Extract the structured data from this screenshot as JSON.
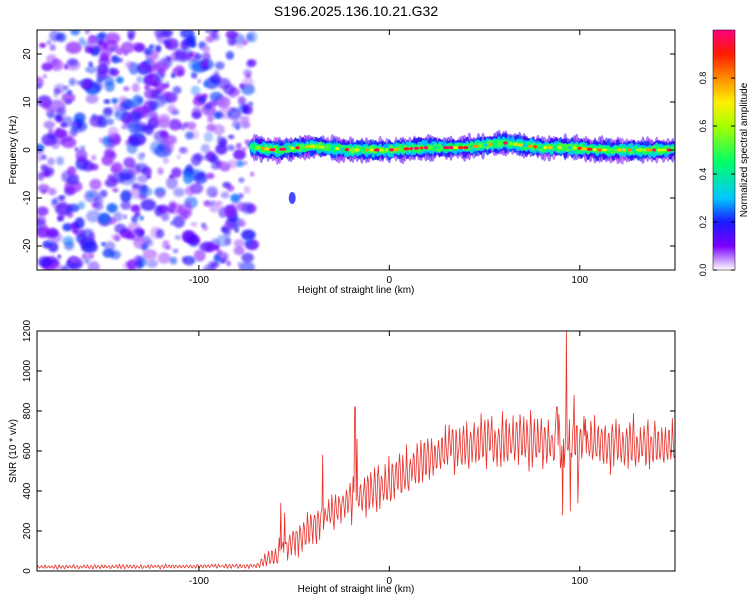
{
  "title": "S196.2025.136.10.21.G32",
  "chart_data": [
    {
      "type": "heatmap",
      "xlabel": "Height of straight line (km)",
      "ylabel": "Frequency (Hz)",
      "xlim": [
        -185,
        150
      ],
      "ylim": [
        -25,
        25
      ],
      "xticks": [
        -100,
        0,
        100
      ],
      "yticks": [
        -20,
        -10,
        0,
        10,
        20
      ],
      "colorbar": {
        "label": "Normalized spectral amplitude",
        "range": [
          0,
          1
        ],
        "ticks": [
          "0.0",
          "0.2",
          "0.4",
          "0.6",
          "0.8"
        ]
      },
      "regions": [
        {
          "name": "noise",
          "x": [
            -185,
            -72
          ],
          "y": [
            -25,
            25
          ],
          "amplitude": [
            0.05,
            0.25
          ]
        },
        {
          "name": "signal",
          "x": [
            -72,
            150
          ],
          "y_center": 0,
          "y_halfwidth": 1.5,
          "amplitude": [
            0.3,
            1.0
          ]
        },
        {
          "name": "blob",
          "x": [
            -52,
            -50
          ],
          "y": [
            -11,
            -9
          ],
          "amplitude": [
            0.1,
            0.2
          ]
        }
      ],
      "signal_trace": [
        {
          "x": -70,
          "y": 0.5
        },
        {
          "x": -60,
          "y": 0.0
        },
        {
          "x": -40,
          "y": 0.8
        },
        {
          "x": -20,
          "y": 0.0
        },
        {
          "x": 0,
          "y": 0.0
        },
        {
          "x": 20,
          "y": 0.5
        },
        {
          "x": 40,
          "y": 0.5
        },
        {
          "x": 60,
          "y": 1.5
        },
        {
          "x": 80,
          "y": 0.5
        },
        {
          "x": 95,
          "y": 0.5
        },
        {
          "x": 110,
          "y": 0.0
        },
        {
          "x": 130,
          "y": 0.0
        },
        {
          "x": 150,
          "y": 0.0
        }
      ]
    },
    {
      "type": "line",
      "xlabel": "Height of straight line (km)",
      "ylabel": "SNR (10 * v/v)",
      "xlim": [
        -185,
        150
      ],
      "ylim": [
        0,
        1200
      ],
      "xticks": [
        -100,
        0,
        100
      ],
      "yticks": [
        0,
        200,
        400,
        600,
        800,
        1000,
        1200
      ],
      "color": "#e8312b",
      "baseline": [
        {
          "x": -185,
          "y": 20
        },
        {
          "x": -70,
          "y": 25
        },
        {
          "x": -60,
          "y": 80
        },
        {
          "x": -50,
          "y": 150
        },
        {
          "x": -40,
          "y": 220
        },
        {
          "x": -30,
          "y": 300
        },
        {
          "x": -20,
          "y": 350
        },
        {
          "x": -10,
          "y": 400
        },
        {
          "x": 0,
          "y": 440
        },
        {
          "x": 10,
          "y": 500
        },
        {
          "x": 20,
          "y": 560
        },
        {
          "x": 30,
          "y": 610
        },
        {
          "x": 50,
          "y": 650
        },
        {
          "x": 70,
          "y": 650
        },
        {
          "x": 90,
          "y": 630
        },
        {
          "x": 110,
          "y": 640
        },
        {
          "x": 150,
          "y": 640
        }
      ],
      "amplitude": [
        {
          "x": -185,
          "y": 10
        },
        {
          "x": -70,
          "y": 10
        },
        {
          "x": -60,
          "y": 60
        },
        {
          "x": -40,
          "y": 90
        },
        {
          "x": 0,
          "y": 110
        },
        {
          "x": 40,
          "y": 120
        },
        {
          "x": 150,
          "y": 130
        }
      ],
      "spikes": [
        {
          "x": -57,
          "y": 340
        },
        {
          "x": -55,
          "y": 290
        },
        {
          "x": -35,
          "y": 580
        },
        {
          "x": -18,
          "y": 820
        },
        {
          "x": -17,
          "y": 660
        },
        {
          "x": 88,
          "y": 820
        },
        {
          "x": 91,
          "y": 280
        },
        {
          "x": 93,
          "y": 1200
        },
        {
          "x": 95,
          "y": 300
        },
        {
          "x": 97,
          "y": 880
        },
        {
          "x": 99,
          "y": 340
        },
        {
          "x": 103,
          "y": 760
        }
      ]
    }
  ]
}
